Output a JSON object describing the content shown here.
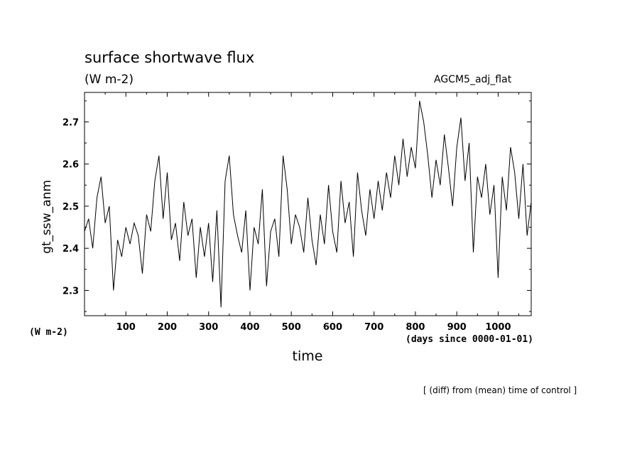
{
  "chart_data": {
    "type": "line",
    "title": "surface shortwave flux",
    "units_label": "(W m-2)",
    "model_label": "AGCM5_adj_flat",
    "ylabel": "gt_ssw_anm",
    "y_unit_label": "(W m-2)",
    "xlabel": "time",
    "x_unit_label": "(days since 0000-01-01)",
    "footnote": "[ (diff) from (mean) time of control ]",
    "xlim": [
      0,
      1080
    ],
    "ylim": [
      2.24,
      2.77
    ],
    "x_ticks": [
      100,
      200,
      300,
      400,
      500,
      600,
      700,
      800,
      900,
      1000
    ],
    "y_ticks": [
      2.3,
      2.4,
      2.5,
      2.6,
      2.7
    ],
    "grid": false,
    "legend": "none",
    "line_color": "#000000",
    "series": [
      {
        "x": [
          0,
          10,
          20,
          30,
          40,
          50,
          60,
          70,
          80,
          90,
          100,
          110,
          120,
          130,
          140,
          150,
          160,
          170,
          180,
          190,
          200,
          210,
          220,
          230,
          240,
          250,
          260,
          270,
          280,
          290,
          300,
          310,
          320,
          330,
          340,
          350,
          360,
          370,
          380,
          390,
          400,
          410,
          420,
          430,
          440,
          450,
          460,
          470,
          480,
          490,
          500,
          510,
          520,
          530,
          540,
          550,
          560,
          570,
          580,
          590,
          600,
          610,
          620,
          630,
          640,
          650,
          660,
          670,
          680,
          690,
          700,
          710,
          720,
          730,
          740,
          750,
          760,
          770,
          780,
          790,
          800,
          810,
          820,
          830,
          840,
          850,
          860,
          870,
          880,
          890,
          900,
          910,
          920,
          930,
          940,
          950,
          960,
          970,
          980,
          990,
          1000,
          1010,
          1020,
          1030,
          1040,
          1050,
          1060,
          1070,
          1080
        ],
        "values": [
          2.44,
          2.47,
          2.4,
          2.52,
          2.57,
          2.46,
          2.5,
          2.3,
          2.42,
          2.38,
          2.45,
          2.41,
          2.46,
          2.43,
          2.34,
          2.48,
          2.44,
          2.56,
          2.62,
          2.47,
          2.58,
          2.42,
          2.46,
          2.37,
          2.51,
          2.43,
          2.47,
          2.33,
          2.45,
          2.38,
          2.46,
          2.32,
          2.49,
          2.26,
          2.56,
          2.62,
          2.48,
          2.43,
          2.39,
          2.49,
          2.3,
          2.45,
          2.41,
          2.54,
          2.31,
          2.44,
          2.47,
          2.38,
          2.62,
          2.54,
          2.41,
          2.48,
          2.45,
          2.39,
          2.52,
          2.42,
          2.36,
          2.48,
          2.41,
          2.55,
          2.44,
          2.39,
          2.56,
          2.46,
          2.51,
          2.38,
          2.58,
          2.49,
          2.43,
          2.54,
          2.47,
          2.56,
          2.49,
          2.58,
          2.52,
          2.62,
          2.55,
          2.66,
          2.57,
          2.64,
          2.59,
          2.75,
          2.7,
          2.62,
          2.52,
          2.61,
          2.55,
          2.67,
          2.59,
          2.5,
          2.64,
          2.71,
          2.56,
          2.65,
          2.39,
          2.57,
          2.52,
          2.6,
          2.48,
          2.55,
          2.33,
          2.57,
          2.49,
          2.64,
          2.58,
          2.47,
          2.6,
          2.43,
          2.51
        ]
      }
    ]
  }
}
